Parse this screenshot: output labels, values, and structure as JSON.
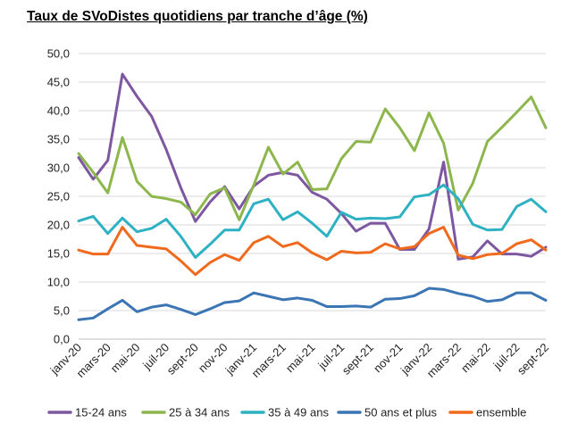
{
  "chart_data": {
    "type": "line",
    "title": "Taux de SVoDistes quotidiens par tranche d’âge (%)",
    "xlabel": "",
    "ylabel": "",
    "ylim": [
      0,
      50
    ],
    "yticks": [
      "0,0",
      "5,0",
      "10,0",
      "15,0",
      "20,0",
      "25,0",
      "30,0",
      "35,0",
      "40,0",
      "45,0",
      "50,0"
    ],
    "grid": true,
    "legend": "bottom",
    "categories": [
      "janv-20",
      "févr-20",
      "mars-20",
      "avr-20",
      "mai-20",
      "juin-20",
      "juil-20",
      "août-20",
      "sept-20",
      "oct-20",
      "nov-20",
      "déc-20",
      "janv-21",
      "févr-21",
      "mars-21",
      "avr-21",
      "mai-21",
      "juin-21",
      "juil-21",
      "août-21",
      "sept-21",
      "oct-21",
      "nov-21",
      "déc-21",
      "janv-22",
      "févr-22",
      "mars-22",
      "avr-22",
      "mai-22",
      "juin-22",
      "juil-22",
      "août-22",
      "sept-22"
    ],
    "xtick_labels": [
      "janv-20",
      "mars-20",
      "mai-20",
      "juil-20",
      "sept-20",
      "nov-20",
      "janv-21",
      "mars-21",
      "mai-21",
      "juil-21",
      "sept-21",
      "nov-21",
      "janv-22",
      "mars-22",
      "mai-22",
      "juil-22",
      "sept-22"
    ],
    "series": [
      {
        "name": "15-24 ans",
        "color": "#7E57A1",
        "values": [
          31.8,
          28.0,
          31.3,
          46.4,
          42.5,
          39.0,
          33.2,
          26.5,
          20.6,
          24.0,
          26.7,
          22.8,
          26.8,
          28.7,
          29.2,
          28.7,
          25.7,
          24.5,
          22.0,
          18.9,
          20.3,
          20.3,
          15.7,
          15.7,
          19.3,
          31.0,
          14.0,
          14.4,
          17.2,
          14.9,
          14.9,
          14.5,
          16.1
        ]
      },
      {
        "name": "25 à 34 ans",
        "color": "#8DB64D",
        "values": [
          32.5,
          29.2,
          25.6,
          35.3,
          27.6,
          25.0,
          24.6,
          24.0,
          21.8,
          25.4,
          26.5,
          20.9,
          27.0,
          33.6,
          28.9,
          31.0,
          26.2,
          26.3,
          31.6,
          34.6,
          34.5,
          40.3,
          37.0,
          33.0,
          39.6,
          34.3,
          22.6,
          27.3,
          34.6,
          37.1,
          39.7,
          42.4,
          37.0
        ]
      },
      {
        "name": "35 à 49 ans",
        "color": "#2EB1C3",
        "values": [
          20.7,
          21.5,
          18.5,
          21.2,
          18.8,
          19.4,
          21.0,
          18.0,
          14.3,
          16.6,
          19.1,
          19.1,
          23.7,
          24.5,
          20.9,
          22.3,
          20.3,
          18.0,
          22.2,
          21.0,
          21.2,
          21.1,
          21.4,
          24.9,
          25.3,
          27.0,
          24.6,
          20.1,
          19.1,
          19.2,
          23.2,
          24.5,
          22.3
        ]
      },
      {
        "name": "50 ans et plus",
        "color": "#3B75B3",
        "values": [
          3.4,
          3.7,
          5.3,
          6.8,
          4.8,
          5.6,
          6.0,
          5.2,
          4.3,
          5.3,
          6.4,
          6.7,
          8.1,
          7.5,
          6.9,
          7.2,
          6.8,
          5.7,
          5.7,
          5.8,
          5.6,
          7.0,
          7.1,
          7.6,
          8.9,
          8.7,
          8.0,
          7.5,
          6.6,
          6.9,
          8.1,
          8.1,
          6.8
        ]
      },
      {
        "name": "ensemble",
        "color": "#EF6A1C",
        "values": [
          15.6,
          14.9,
          14.9,
          19.6,
          16.4,
          16.1,
          15.8,
          13.7,
          11.3,
          13.4,
          14.8,
          13.8,
          16.9,
          18.0,
          16.2,
          16.9,
          15.1,
          13.9,
          15.4,
          15.1,
          15.2,
          16.7,
          15.8,
          16.2,
          18.5,
          19.6,
          14.7,
          14.1,
          14.8,
          15.0,
          16.7,
          17.4,
          15.6
        ]
      }
    ]
  }
}
